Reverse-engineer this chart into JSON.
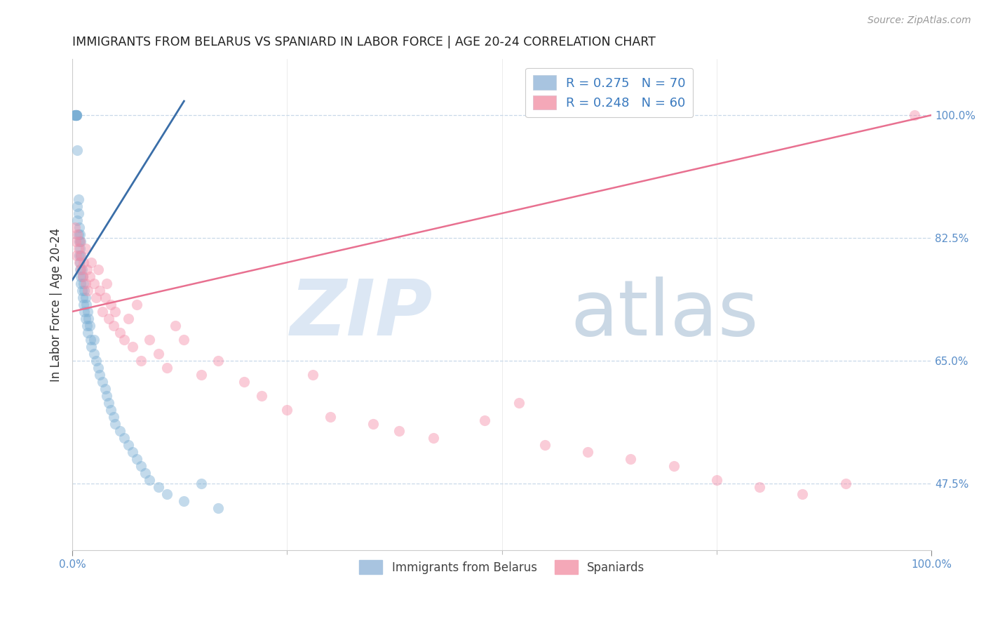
{
  "title": "IMMIGRANTS FROM BELARUS VS SPANIARD IN LABOR FORCE | AGE 20-24 CORRELATION CHART",
  "source": "Source: ZipAtlas.com",
  "ylabel": "In Labor Force | Age 20-24",
  "xlim": [
    0.0,
    1.0
  ],
  "ylim": [
    0.38,
    1.08
  ],
  "ytick_labels": [
    "47.5%",
    "65.0%",
    "82.5%",
    "100.0%"
  ],
  "ytick_positions": [
    0.475,
    0.65,
    0.825,
    1.0
  ],
  "watermark_zip": "ZIP",
  "watermark_atlas": "atlas",
  "blue_color": "#7bafd4",
  "pink_color": "#f48faa",
  "blue_line_color": "#3a6ea8",
  "pink_line_color": "#e87090",
  "background_color": "#ffffff",
  "grid_color": "#c8d8e8",
  "title_color": "#222222",
  "tick_label_color": "#5b8fc9",
  "scatter_size": 120,
  "scatter_alpha": 0.45,
  "blue_scatter_x": [
    0.002,
    0.003,
    0.003,
    0.004,
    0.004,
    0.004,
    0.005,
    0.005,
    0.005,
    0.005,
    0.006,
    0.006,
    0.006,
    0.007,
    0.007,
    0.007,
    0.008,
    0.008,
    0.008,
    0.009,
    0.009,
    0.009,
    0.009,
    0.01,
    0.01,
    0.01,
    0.01,
    0.011,
    0.011,
    0.012,
    0.012,
    0.013,
    0.013,
    0.014,
    0.014,
    0.015,
    0.015,
    0.016,
    0.017,
    0.018,
    0.018,
    0.019,
    0.02,
    0.021,
    0.022,
    0.025,
    0.025,
    0.028,
    0.03,
    0.032,
    0.035,
    0.038,
    0.04,
    0.042,
    0.045,
    0.048,
    0.05,
    0.055,
    0.06,
    0.065,
    0.07,
    0.075,
    0.08,
    0.085,
    0.09,
    0.1,
    0.11,
    0.13,
    0.15,
    0.17
  ],
  "blue_scatter_y": [
    1.0,
    1.0,
    1.0,
    1.0,
    1.0,
    1.0,
    1.0,
    1.0,
    1.0,
    1.0,
    0.95,
    0.87,
    0.85,
    0.86,
    0.88,
    0.83,
    0.82,
    0.84,
    0.8,
    0.81,
    0.83,
    0.79,
    0.78,
    0.82,
    0.8,
    0.77,
    0.76,
    0.78,
    0.75,
    0.77,
    0.74,
    0.76,
    0.73,
    0.75,
    0.72,
    0.74,
    0.71,
    0.73,
    0.7,
    0.72,
    0.69,
    0.71,
    0.7,
    0.68,
    0.67,
    0.66,
    0.68,
    0.65,
    0.64,
    0.63,
    0.62,
    0.61,
    0.6,
    0.59,
    0.58,
    0.57,
    0.56,
    0.55,
    0.54,
    0.53,
    0.52,
    0.51,
    0.5,
    0.49,
    0.48,
    0.47,
    0.46,
    0.45,
    0.475,
    0.44
  ],
  "pink_scatter_x": [
    0.003,
    0.004,
    0.005,
    0.006,
    0.007,
    0.008,
    0.009,
    0.01,
    0.01,
    0.012,
    0.013,
    0.015,
    0.015,
    0.017,
    0.018,
    0.02,
    0.022,
    0.025,
    0.028,
    0.03,
    0.032,
    0.035,
    0.038,
    0.04,
    0.042,
    0.045,
    0.048,
    0.05,
    0.055,
    0.06,
    0.065,
    0.07,
    0.075,
    0.08,
    0.09,
    0.1,
    0.11,
    0.12,
    0.13,
    0.15,
    0.17,
    0.2,
    0.22,
    0.25,
    0.28,
    0.3,
    0.35,
    0.38,
    0.42,
    0.48,
    0.52,
    0.55,
    0.6,
    0.65,
    0.7,
    0.75,
    0.8,
    0.85,
    0.9,
    0.98
  ],
  "pink_scatter_y": [
    0.84,
    0.82,
    0.8,
    0.83,
    0.81,
    0.79,
    0.82,
    0.8,
    0.78,
    0.77,
    0.79,
    0.76,
    0.81,
    0.78,
    0.75,
    0.77,
    0.79,
    0.76,
    0.74,
    0.78,
    0.75,
    0.72,
    0.74,
    0.76,
    0.71,
    0.73,
    0.7,
    0.72,
    0.69,
    0.68,
    0.71,
    0.67,
    0.73,
    0.65,
    0.68,
    0.66,
    0.64,
    0.7,
    0.68,
    0.63,
    0.65,
    0.62,
    0.6,
    0.58,
    0.63,
    0.57,
    0.56,
    0.55,
    0.54,
    0.565,
    0.59,
    0.53,
    0.52,
    0.51,
    0.5,
    0.48,
    0.47,
    0.46,
    0.475,
    1.0
  ],
  "blue_line_x": [
    0.0,
    0.13
  ],
  "blue_line_y": [
    0.765,
    1.02
  ],
  "pink_line_x": [
    0.0,
    1.0
  ],
  "pink_line_y": [
    0.72,
    1.0
  ]
}
